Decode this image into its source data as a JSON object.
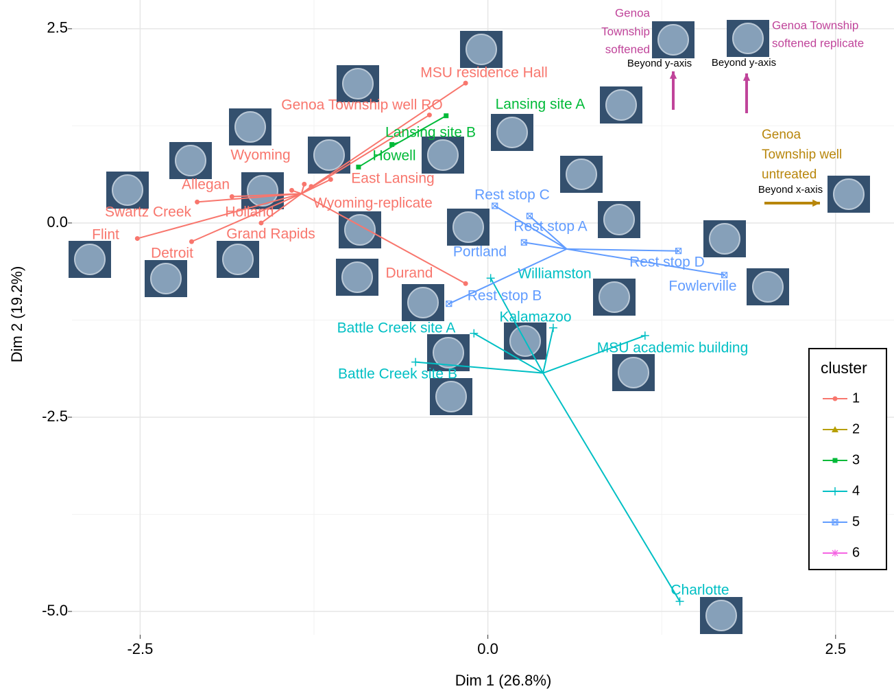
{
  "chart_data": {
    "type": "scatter",
    "x_label": "Dim 1 (26.8%)",
    "y_label": "Dim 2 (19.2%)",
    "xlim": [
      -2.99,
      2.92
    ],
    "ylim": [
      -5.3,
      2.87
    ],
    "xticks": [
      -2.5,
      {
        "value": 0,
        "label": "0.0"
      },
      2.5
    ],
    "yticks": [
      2.5,
      {
        "value": 0,
        "label": "0.0"
      },
      -2.5,
      {
        "value": -5,
        "label": "-5.0"
      }
    ],
    "xminorticks": [
      -1.25,
      1.25
    ],
    "yminorticks": [
      1.25,
      -1.25,
      -3.75
    ],
    "grid": true,
    "legend_title": "cluster",
    "legend_position": "right",
    "series": [
      {
        "name": "1",
        "color": "#F8766D",
        "marker": "circle",
        "labels": [
          "MSU residence Hall",
          "Genoa Township well RO",
          "Wyoming",
          "Wyoming-replicate",
          "East Lansing",
          "Allegan",
          "Swartz Creek",
          "Holland",
          "Flint",
          "Detroit",
          "Grand Rapids",
          "Durand"
        ],
        "x": [
          -0.16,
          -0.42,
          -1.32,
          -1.27,
          -1.13,
          -1.84,
          -2.09,
          -1.41,
          -2.52,
          -2.13,
          -1.63,
          -0.16
        ],
        "values": [
          1.8,
          1.39,
          0.5,
          0.47,
          0.56,
          0.34,
          0.27,
          0.42,
          -0.2,
          -0.24,
          0.0,
          -0.78
        ]
      },
      {
        "name": "2",
        "color": "#B79F00",
        "marker": "triangle",
        "labels": [],
        "x": [],
        "values": []
      },
      {
        "name": "3",
        "color": "#00BA38",
        "marker": "square",
        "labels": [
          "Lansing site A",
          "Lansing site B",
          "Howell"
        ],
        "x": [
          -0.3,
          -0.69,
          -0.93
        ],
        "values": [
          1.38,
          1.01,
          0.72
        ]
      },
      {
        "name": "4",
        "color": "#00BFC4",
        "marker": "plus",
        "labels": [
          "Williamston",
          "Kalamazoo",
          "Battle Creek site A",
          "MSU academic building",
          "Battle Creek site B",
          "Charlotte"
        ],
        "x": [
          0.02,
          0.47,
          -0.1,
          1.13,
          -0.52,
          1.38
        ],
        "values": [
          -0.71,
          -1.35,
          -1.42,
          -1.45,
          -1.79,
          -4.87
        ]
      },
      {
        "name": "5",
        "color": "#619CFF",
        "marker": "square-x",
        "labels": [
          "Rest stop C",
          "Rest stop A",
          "Portland",
          "Rest stop D",
          "Fowlerville",
          "Rest stop B"
        ],
        "x": [
          0.05,
          0.3,
          0.26,
          1.37,
          1.7,
          -0.28
        ],
        "values": [
          0.22,
          0.09,
          -0.25,
          -0.36,
          -0.67,
          -1.04
        ]
      },
      {
        "name": "6",
        "color": "#F564E3",
        "marker": "star",
        "labels": [],
        "x": [],
        "values": []
      }
    ],
    "annotations": [
      {
        "lines": [
          "Genoa",
          "Township",
          "softened"
        ],
        "color": "#C0449A"
      },
      {
        "lines": [
          "Beyond y-axis"
        ],
        "color": "#000000"
      },
      {
        "lines": [
          "Genoa Township",
          "softened replicate"
        ],
        "color": "#C0449A"
      },
      {
        "lines": [
          "Beyond y-axis"
        ],
        "color": "#000000"
      },
      {
        "lines": [
          "Genoa",
          "Township well",
          "untreated"
        ],
        "color": "#B8860B"
      },
      {
        "lines": [
          "Beyond x-axis"
        ],
        "color": "#000000"
      }
    ]
  }
}
